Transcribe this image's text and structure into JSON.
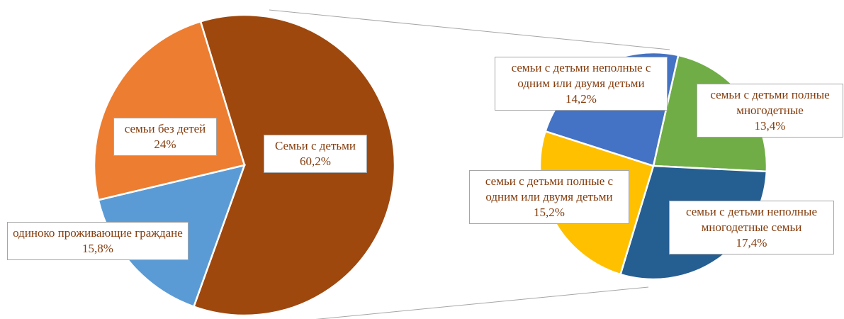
{
  "chart_data": [
    {
      "type": "pie",
      "categories": [
        "Семьи с детьми",
        "одиноко проживающие граждане",
        "семьи без детей"
      ],
      "values": [
        60.2,
        15.8,
        24
      ],
      "value_labels": [
        "60,2%",
        "15,8%",
        "24%"
      ],
      "colors": [
        "#9e480e",
        "#5b9bd5",
        "#ed7d31"
      ],
      "label_color": "#843c0c"
    },
    {
      "type": "pie",
      "categories": [
        "семьи с детьми полные многодетные",
        "семьи с детьми неполные многодетные семьи",
        "семьи с детьми полные с одним или двумя детьми",
        "семьи с детьми неполные с одним или двумя детьми"
      ],
      "values": [
        13.4,
        17.4,
        15.2,
        14.2
      ],
      "value_labels": [
        "13,4%",
        "17,4%",
        "15,2%",
        "14,2%"
      ],
      "colors": [
        "#70ad47",
        "#255e91",
        "#ffc000",
        "#4472c4"
      ],
      "label_color": "#843c0c"
    }
  ]
}
